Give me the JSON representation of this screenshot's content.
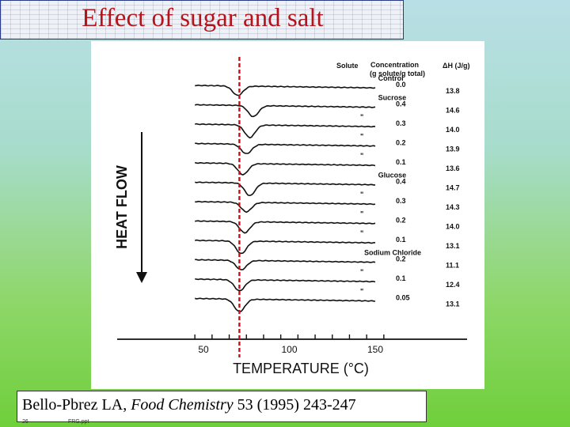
{
  "slide": {
    "title": "Effect of sugar and salt",
    "citation": {
      "authors": "Bello-Pbrez LA, ",
      "journal": "Food Chemistry",
      "details": " 53 (1995) 243-247"
    },
    "slide_number": "26",
    "file_label": "FRG.ppt"
  },
  "chart_data": {
    "type": "line",
    "title": "",
    "xlabel": "TEMPERATURE (°C)",
    "ylabel": "HEAT FLOW",
    "x_ticks": [
      50,
      100,
      150
    ],
    "xlim": [
      45,
      160
    ],
    "reference_line_x": 70,
    "header": {
      "solute": "Solute",
      "concentration_line1": "Concentration",
      "concentration_line2": "(g solute/g total)",
      "enthalpy": "ΔH (J/g)"
    },
    "series": [
      {
        "solute": "Control",
        "concentration": "0.0",
        "delta_h": "13.8",
        "peak_x": 70
      },
      {
        "solute": "Sucrose",
        "concentration": "0.4",
        "delta_h": "14.6",
        "peak_x": 79
      },
      {
        "solute": "\"",
        "concentration": "0.3",
        "delta_h": "14.0",
        "peak_x": 77
      },
      {
        "solute": "\"",
        "concentration": "0.2",
        "delta_h": "13.9",
        "peak_x": 75
      },
      {
        "solute": "\"",
        "concentration": "0.1",
        "delta_h": "13.6",
        "peak_x": 73
      },
      {
        "solute": "Glucose",
        "concentration": "0.4",
        "delta_h": "14.7",
        "peak_x": 77
      },
      {
        "solute": "\"",
        "concentration": "0.3",
        "delta_h": "14.3",
        "peak_x": 75
      },
      {
        "solute": "\"",
        "concentration": "0.2",
        "delta_h": "14.0",
        "peak_x": 74
      },
      {
        "solute": "\"",
        "concentration": "0.1",
        "delta_h": "13.1",
        "peak_x": 72
      },
      {
        "solute": "Sodium Chloride",
        "concentration": "0.2",
        "delta_h": "11.1",
        "peak_x": 72
      },
      {
        "solute": "\"",
        "concentration": "0.1",
        "delta_h": "12.4",
        "peak_x": 71
      },
      {
        "solute": "\"",
        "concentration": "0.05",
        "delta_h": "13.1",
        "peak_x": 71
      }
    ]
  }
}
